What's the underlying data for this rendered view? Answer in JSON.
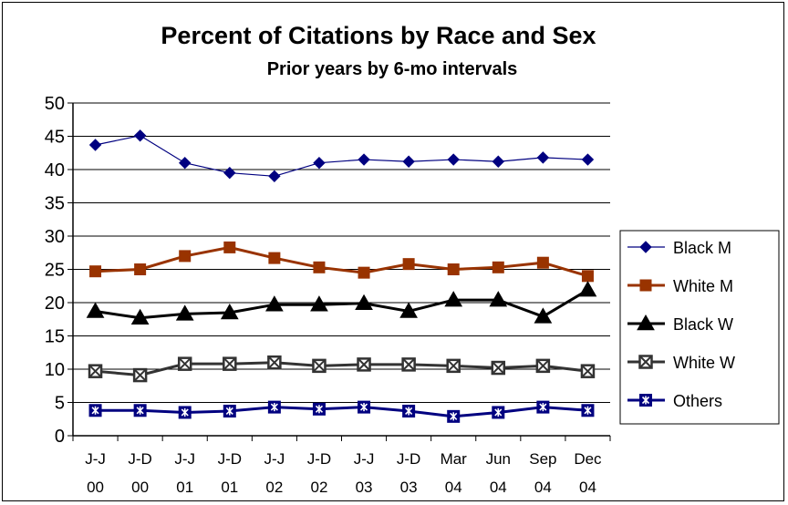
{
  "chart_data": {
    "type": "line",
    "title": "Percent of Citations by Race and Sex",
    "subtitle": "Prior years by 6-mo intervals",
    "xlabel": "",
    "ylabel": "",
    "ylim": [
      0,
      50
    ],
    "yticks": [
      "0",
      "5",
      "10",
      "15",
      "20",
      "25",
      "30",
      "35",
      "40",
      "45",
      "50"
    ],
    "grid": "horizontal",
    "legend_position": "right",
    "categories": [
      {
        "line1": "J-J",
        "line2": "00"
      },
      {
        "line1": "J-D",
        "line2": "00"
      },
      {
        "line1": "J-J",
        "line2": "01"
      },
      {
        "line1": "J-D",
        "line2": "01"
      },
      {
        "line1": "J-J",
        "line2": "02"
      },
      {
        "line1": "J-D",
        "line2": "02"
      },
      {
        "line1": "J-J",
        "line2": "03"
      },
      {
        "line1": "J-D",
        "line2": "03"
      },
      {
        "line1": "Mar",
        "line2": "04"
      },
      {
        "line1": "Jun",
        "line2": "04"
      },
      {
        "line1": "Sep",
        "line2": "04"
      },
      {
        "line1": "Dec",
        "line2": "04"
      }
    ],
    "series": [
      {
        "name": "Black M",
        "color": "#000080",
        "marker": "diamond",
        "values": [
          43.7,
          45.1,
          41.0,
          39.5,
          39.0,
          41.0,
          41.5,
          41.2,
          41.5,
          41.2,
          41.8,
          41.5
        ]
      },
      {
        "name": "White M",
        "color": "#993300",
        "marker": "square",
        "values": [
          24.7,
          25.0,
          27.0,
          28.3,
          26.7,
          25.3,
          24.5,
          25.8,
          25.0,
          25.3,
          26.0,
          24.0
        ]
      },
      {
        "name": "Black W",
        "color": "#000000",
        "marker": "triangle",
        "values": [
          18.7,
          17.7,
          18.3,
          18.5,
          19.7,
          19.7,
          19.9,
          18.7,
          20.4,
          20.4,
          17.9,
          21.9
        ]
      },
      {
        "name": "White W",
        "color": "#333333",
        "marker": "square-x",
        "values": [
          9.7,
          9.1,
          10.8,
          10.8,
          11.0,
          10.5,
          10.7,
          10.7,
          10.5,
          10.2,
          10.5,
          9.7
        ]
      },
      {
        "name": "Others",
        "color": "#000080",
        "marker": "square-star",
        "values": [
          3.8,
          3.8,
          3.5,
          3.7,
          4.3,
          4.0,
          4.3,
          3.7,
          2.9,
          3.5,
          4.3,
          3.8
        ]
      }
    ]
  }
}
